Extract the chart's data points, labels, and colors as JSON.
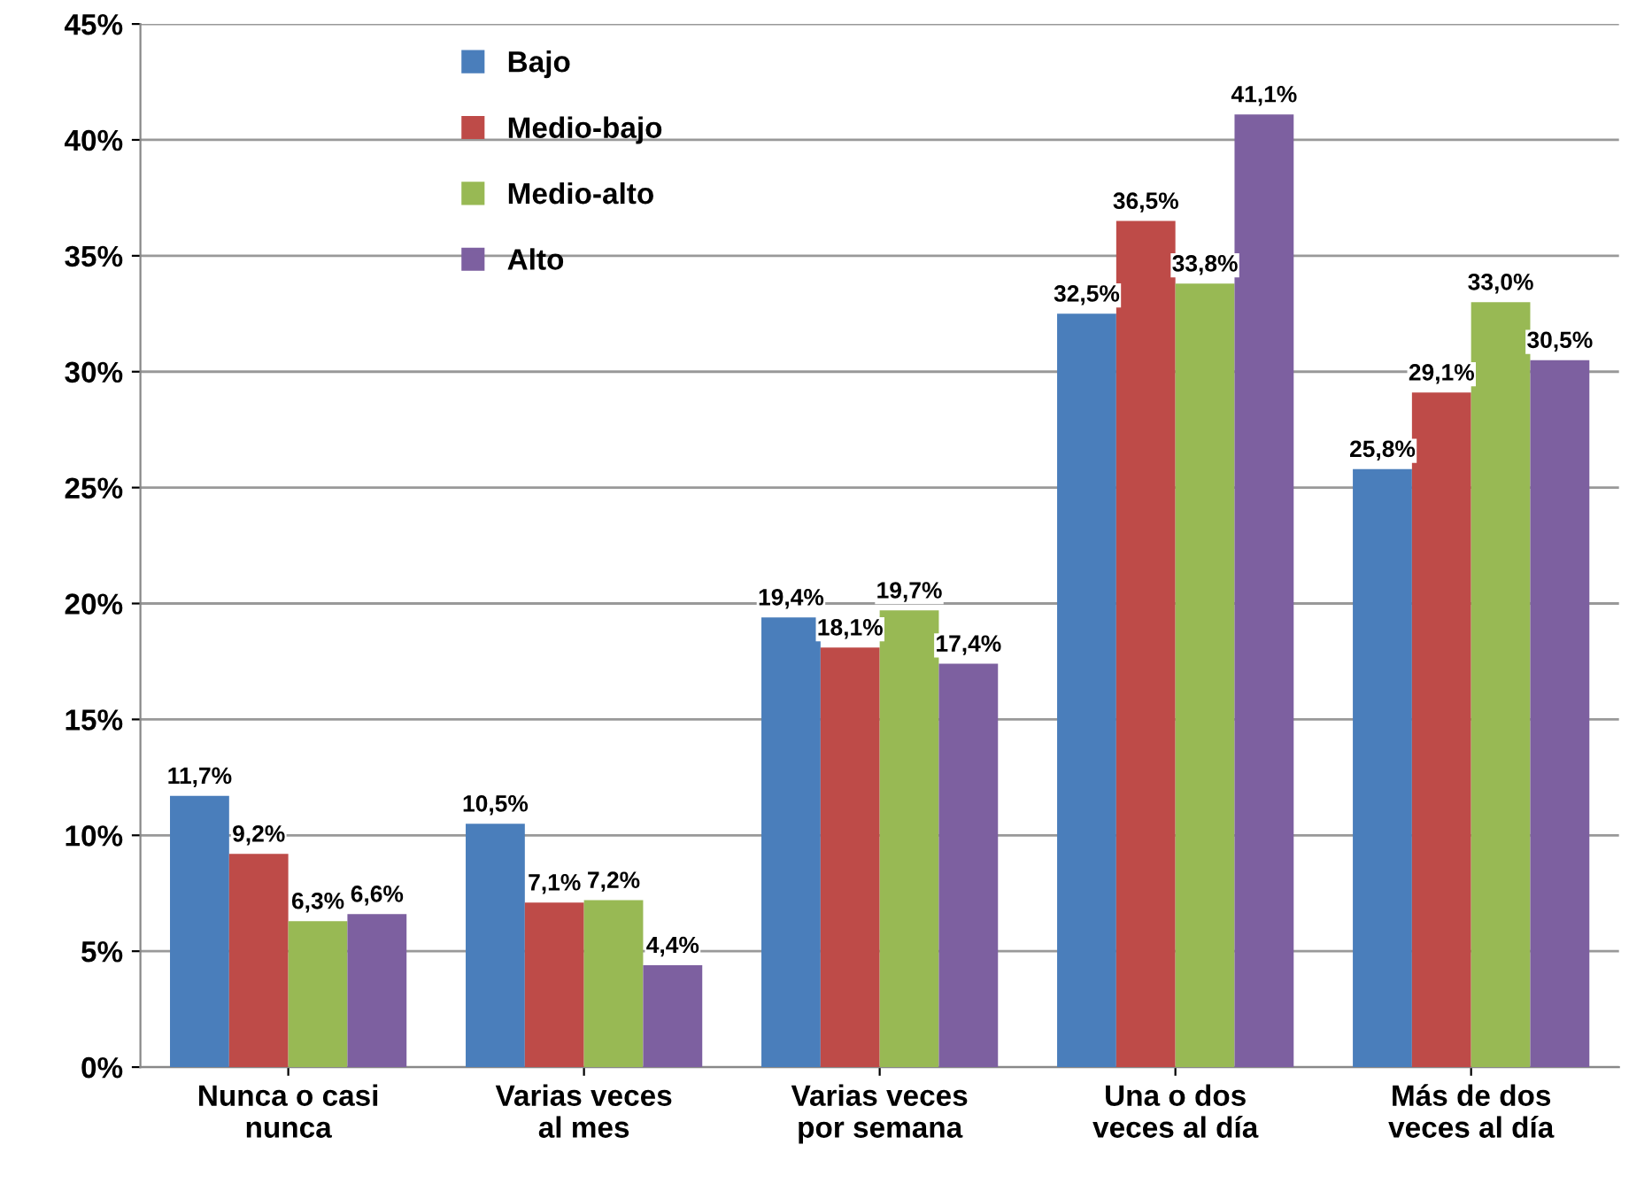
{
  "chart_data": {
    "type": "bar",
    "categories": [
      "Nunca o casi\nnunca",
      "Varias veces\nal mes",
      "Varias veces\npor semana",
      "Una o dos\nveces al día",
      "Más de dos\nveces al día"
    ],
    "series": [
      {
        "name": "Bajo",
        "color": "#4a7ebb",
        "values": [
          11.7,
          10.5,
          19.4,
          32.5,
          25.8
        ],
        "value_labels": [
          "11,7%",
          "10,5%",
          "19,4%",
          "32,5%",
          "25,8%"
        ]
      },
      {
        "name": "Medio-bajo",
        "color": "#be4b48",
        "values": [
          9.2,
          7.1,
          18.1,
          36.5,
          29.1
        ],
        "value_labels": [
          "9,2%",
          "7,1%",
          "18,1%",
          "36,5%",
          "29,1%"
        ]
      },
      {
        "name": "Medio-alto",
        "color": "#98b954",
        "values": [
          6.3,
          7.2,
          19.7,
          33.8,
          33.0
        ],
        "value_labels": [
          "6,3%",
          "7,2%",
          "19,7%",
          "33,8%",
          "33,0%"
        ]
      },
      {
        "name": "Alto",
        "color": "#7d60a0",
        "values": [
          6.6,
          4.4,
          17.4,
          41.1,
          30.5
        ],
        "value_labels": [
          "6,6%",
          "4,4%",
          "17,4%",
          "41,1%",
          "30,5%"
        ]
      }
    ],
    "ylim": [
      0,
      45
    ],
    "yticks": [
      {
        "value": 0,
        "label": "0%"
      },
      {
        "value": 5,
        "label": "5%"
      },
      {
        "value": 10,
        "label": "10%"
      },
      {
        "value": 15,
        "label": "15%"
      },
      {
        "value": 20,
        "label": "20%"
      },
      {
        "value": 25,
        "label": "25%"
      },
      {
        "value": 30,
        "label": "30%"
      },
      {
        "value": 35,
        "label": "35%"
      },
      {
        "value": 40,
        "label": "40%"
      },
      {
        "value": 45,
        "label": "45%"
      }
    ],
    "grid": "y",
    "legend": "top left"
  }
}
